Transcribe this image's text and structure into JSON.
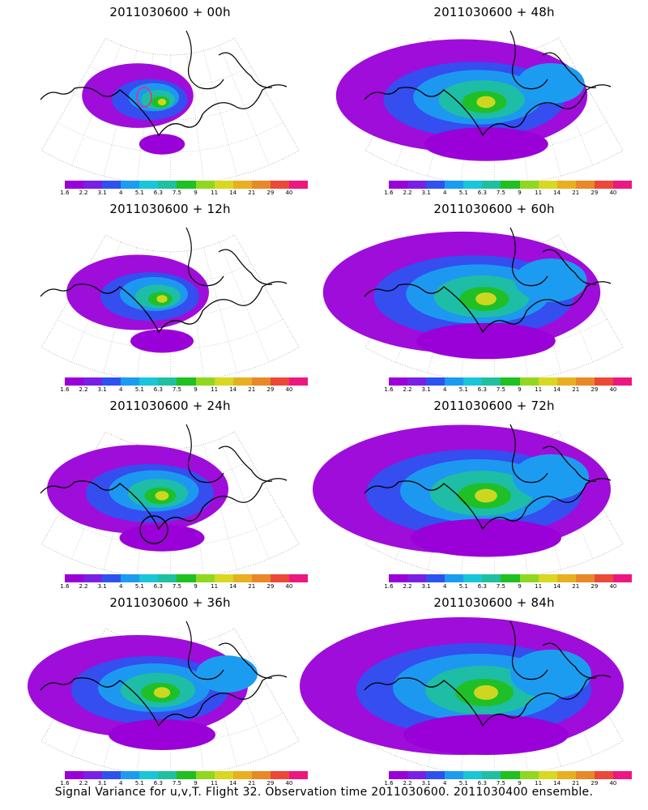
{
  "caption": "Signal Variance for u,v,T. Flight 32. Observation time 2011030600. 2011030400 ensemble.",
  "colorbar": {
    "colors": [
      "#9a00d8",
      "#7a1fe6",
      "#2e52f0",
      "#1c9cf0",
      "#18c6d8",
      "#1ec0a0",
      "#20c020",
      "#90d820",
      "#d8d820",
      "#e8b020",
      "#e88828",
      "#ec4838",
      "#ec1880"
    ],
    "tick_labels": [
      "1.6",
      "2.2",
      "3.1",
      "4",
      "5.1",
      "6.3",
      "7.5",
      "9",
      "11",
      "14",
      "21",
      "29",
      "40"
    ]
  },
  "panels": [
    {
      "id": "p00",
      "title": "2011030600 + 00h",
      "col": 0,
      "row": 0,
      "spread": 0.18,
      "marker": {
        "color": "#ff2080"
      }
    },
    {
      "id": "p12",
      "title": "2011030600 + 12h",
      "col": 0,
      "row": 1,
      "spread": 0.3
    },
    {
      "id": "p24",
      "title": "2011030600 + 24h",
      "col": 0,
      "row": 2,
      "spread": 0.45,
      "marker": {
        "color": "#000000"
      }
    },
    {
      "id": "p36",
      "title": "2011030600 + 36h",
      "col": 0,
      "row": 3,
      "spread": 0.6
    },
    {
      "id": "p48",
      "title": "2011030600 + 48h",
      "col": 1,
      "row": 0,
      "spread": 0.72
    },
    {
      "id": "p60",
      "title": "2011030600 + 60h",
      "col": 1,
      "row": 1,
      "spread": 0.82
    },
    {
      "id": "p72",
      "title": "2011030600 + 72h",
      "col": 1,
      "row": 2,
      "spread": 0.9
    },
    {
      "id": "p84",
      "title": "2011030600 + 84h",
      "col": 1,
      "row": 3,
      "spread": 1.0
    }
  ]
}
